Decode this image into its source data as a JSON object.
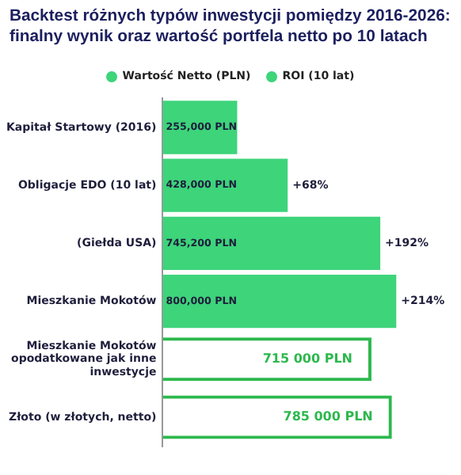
{
  "chart_data": {
    "type": "bar",
    "orientation": "horizontal",
    "title": "Backtest różnych typów inwestycji pomiędzy 2016-2026: finalny wynik oraz wartość portfela netto po 10 latach",
    "categories": [
      "Kapitał Startowy (2016)",
      "Obligacje EDO (10 lat)",
      "(Giełda USA)",
      "Mieszkanie Mokotów",
      "Mieszkanie Mokotów opodatkowane jak inne inwestycje",
      "Złoto (w złotych, netto)"
    ],
    "series": [
      {
        "name": "Wartość Netto (PLN)",
        "color": "#3dd47a",
        "values": [
          255000,
          428000,
          745200,
          800000,
          null,
          null
        ],
        "value_labels": [
          "255,000 PLN",
          "428,000 PLN",
          "745,200 PLN",
          "800,000 PLN",
          null,
          null
        ]
      },
      {
        "color": "#2db84d",
        "values": [
          null,
          null,
          null,
          null,
          715000,
          785000
        ],
        "value_labels": [
          null,
          null,
          null,
          null,
          "715 000 PLN",
          "785 000 PLN"
        ]
      }
    ],
    "annotations": [
      "ROI (10 lat)",
      {
        "text": "+68%",
        "x": 428000,
        "y": "Obligacje EDO (10 lat)"
      },
      {
        "text": "+192%",
        "x": 745200,
        "y": "(Giełda USA)"
      },
      {
        "text": "+214%",
        "x": 800000,
        "y": "Mieszkanie Mokotów"
      }
    ],
    "legend": "top",
    "grid": false
  }
}
